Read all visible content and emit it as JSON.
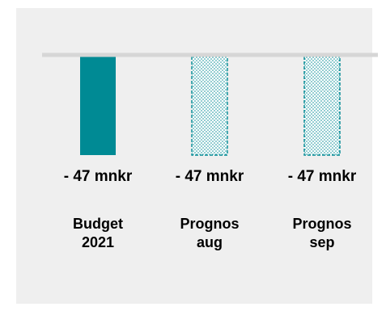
{
  "chart_data": {
    "type": "bar",
    "categories": [
      [
        "Budget",
        "2021"
      ],
      [
        "Prognos",
        "aug"
      ],
      [
        "Prognos",
        "sep"
      ]
    ],
    "values": [
      -47,
      -47,
      -47
    ],
    "data_labels": [
      "- 47 mnkr",
      "- 47 mnkr",
      "- 47 mnkr"
    ],
    "styles": [
      "solid",
      "dotted",
      "dotted"
    ],
    "title": "",
    "xlabel": "",
    "ylabel": "",
    "ylim": [
      -47,
      0
    ],
    "grid": false,
    "legend": "none"
  },
  "colors": {
    "bar": "#008a94",
    "baseline": "#d6d6d6",
    "panel": "#efefef"
  }
}
